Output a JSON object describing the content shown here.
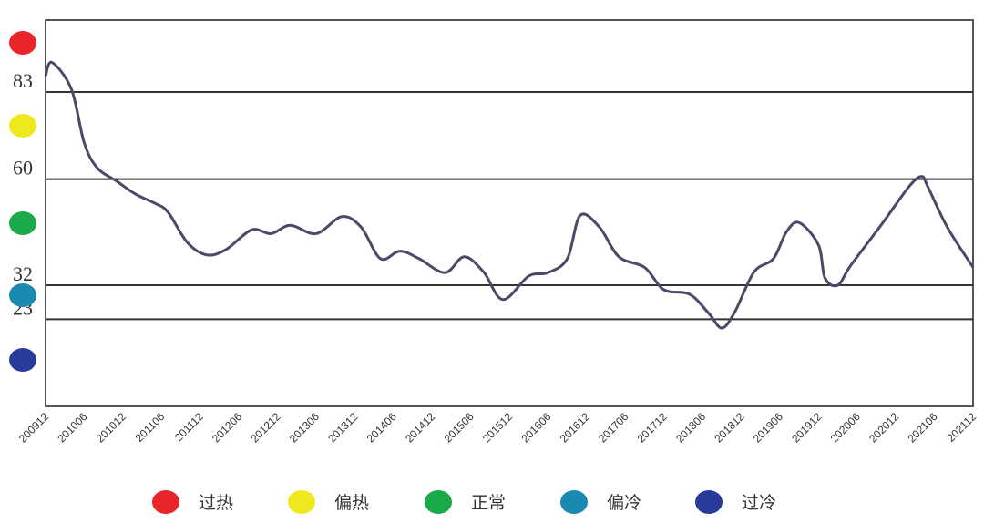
{
  "chart_data": {
    "type": "line",
    "title": "",
    "xlabel": "",
    "ylabel": "",
    "ylim": [
      0,
      102
    ],
    "grid": false,
    "threshold_lines": [
      83,
      60,
      32,
      23
    ],
    "y_tick_labels": [
      "83",
      "60",
      "32",
      "23"
    ],
    "x_tick_labels": [
      "200912",
      "201006",
      "201012",
      "201106",
      "201112",
      "201206",
      "201212",
      "201306",
      "201312",
      "201406",
      "201412",
      "201506",
      "201512",
      "201606",
      "201612",
      "201706",
      "201712",
      "201806",
      "201812",
      "201906",
      "201912",
      "202006",
      "202012",
      "202106",
      "202112"
    ],
    "line_color": "#4a4a68",
    "series": [
      {
        "x": [
          "200912",
          "201001",
          "201004",
          "201006",
          "201008",
          "201011",
          "201102",
          "201105",
          "201107",
          "201110",
          "201201",
          "201204",
          "201208",
          "201211",
          "201302",
          "201306",
          "201310",
          "201401",
          "201404",
          "201407",
          "201410",
          "201502",
          "201505",
          "201508",
          "201511",
          "201603",
          "201606",
          "201609",
          "201611",
          "201702",
          "201705",
          "201709",
          "201712",
          "201804",
          "201807",
          "201809",
          "201811",
          "201902",
          "201905",
          "201907",
          "201909",
          "201912",
          "202001",
          "202003",
          "202005",
          "202010",
          "202102",
          "202104",
          "202105",
          "202108",
          "202112"
        ],
        "y": [
          87.3,
          90.8,
          83.8,
          69.6,
          63,
          59.5,
          56,
          53.6,
          51.3,
          43.3,
          40,
          41.4,
          46.6,
          45.6,
          47.8,
          45.6,
          50.1,
          47.3,
          39,
          41,
          39,
          35.3,
          39.5,
          35.5,
          28.2,
          34.4,
          35.3,
          39,
          50.4,
          47.3,
          39.5,
          36.7,
          30.8,
          29.6,
          24.5,
          20.7,
          24.9,
          35.5,
          39,
          46,
          48.5,
          42.6,
          33.9,
          32,
          37.2,
          48.5,
          57.9,
          60.7,
          57.9,
          47.3,
          36.7
        ]
      }
    ],
    "level_markers": [
      {
        "label": "过热",
        "color": "#e8252a"
      },
      {
        "label": "偏热",
        "color": "#f0e81e"
      },
      {
        "label": "正常",
        "color": "#1aaa4a"
      },
      {
        "label": "偏冷",
        "color": "#1a8ab0"
      },
      {
        "label": "过冷",
        "color": "#2a3a9a"
      }
    ],
    "legend_position": "bottom"
  }
}
